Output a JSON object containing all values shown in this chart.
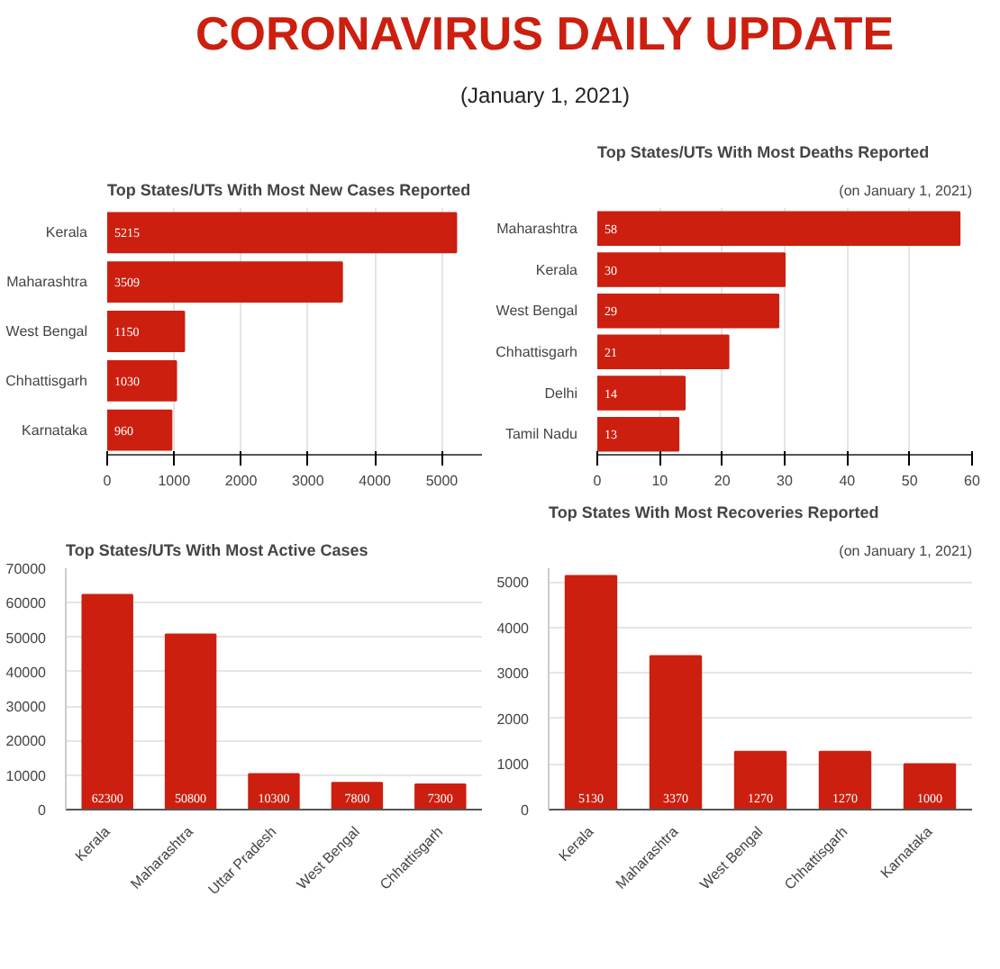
{
  "chart_data": [
    {
      "type": "bar",
      "orientation": "horizontal",
      "title": "Top States/UTs With Most New Cases Reported",
      "annotations": [
        "CORONAVIRUS DAILY UPDATE",
        "(January 1, 2021)"
      ],
      "categories": [
        "Kerala",
        "Maharashtra",
        "West Bengal",
        "Chhattisgarh",
        "Karnataka"
      ],
      "values": [
        5215,
        3509,
        1150,
        1030,
        960
      ],
      "color": "#cc1f0f",
      "xlim": [
        0,
        5600
      ],
      "xticks": [
        0,
        1000,
        2000,
        3000,
        4000,
        5000
      ],
      "grid": "x",
      "data_labels": true
    },
    {
      "type": "bar",
      "orientation": "horizontal",
      "title": "Top States/UTs With Most Deaths Reported",
      "subtitle": "(on January 1, 2021)",
      "categories": [
        "Maharashtra",
        "Kerala",
        "West Bengal",
        "Chhattisgarh",
        "Delhi",
        "Tamil Nadu"
      ],
      "values": [
        58,
        30,
        29,
        21,
        14,
        13
      ],
      "color": "#cc1f0f",
      "xlim": [
        0,
        60
      ],
      "xticks": [
        0,
        10,
        20,
        30,
        40,
        50,
        60
      ],
      "grid": "x",
      "data_labels": true
    },
    {
      "type": "bar",
      "title": "Top States/UTs With Most Active Cases",
      "categories": [
        "Kerala",
        "Maharashtra",
        "Uttar Pradesh",
        "West Bengal",
        "Chhattisgarh"
      ],
      "values": [
        62300,
        50800,
        10300,
        7800,
        7300
      ],
      "color": "#cc1f0f",
      "ylim": [
        0,
        70000
      ],
      "yticks": [
        0,
        10000,
        20000,
        30000,
        40000,
        50000,
        60000,
        70000
      ],
      "grid": "y",
      "data_labels": true
    },
    {
      "type": "bar",
      "title": "Top States With Most Recoveries Reported",
      "subtitle": "(on January 1, 2021)",
      "categories": [
        "Kerala",
        "Maharashtra",
        "West Bengal",
        "Chhattisgarh",
        "Karnataka"
      ],
      "values": [
        5130,
        3370,
        1270,
        1270,
        1000
      ],
      "color": "#cc1f0f",
      "ylim": [
        0,
        5300
      ],
      "yticks": [
        0,
        1000,
        2000,
        3000,
        4000,
        5000
      ],
      "grid": "y",
      "data_labels": true
    }
  ]
}
